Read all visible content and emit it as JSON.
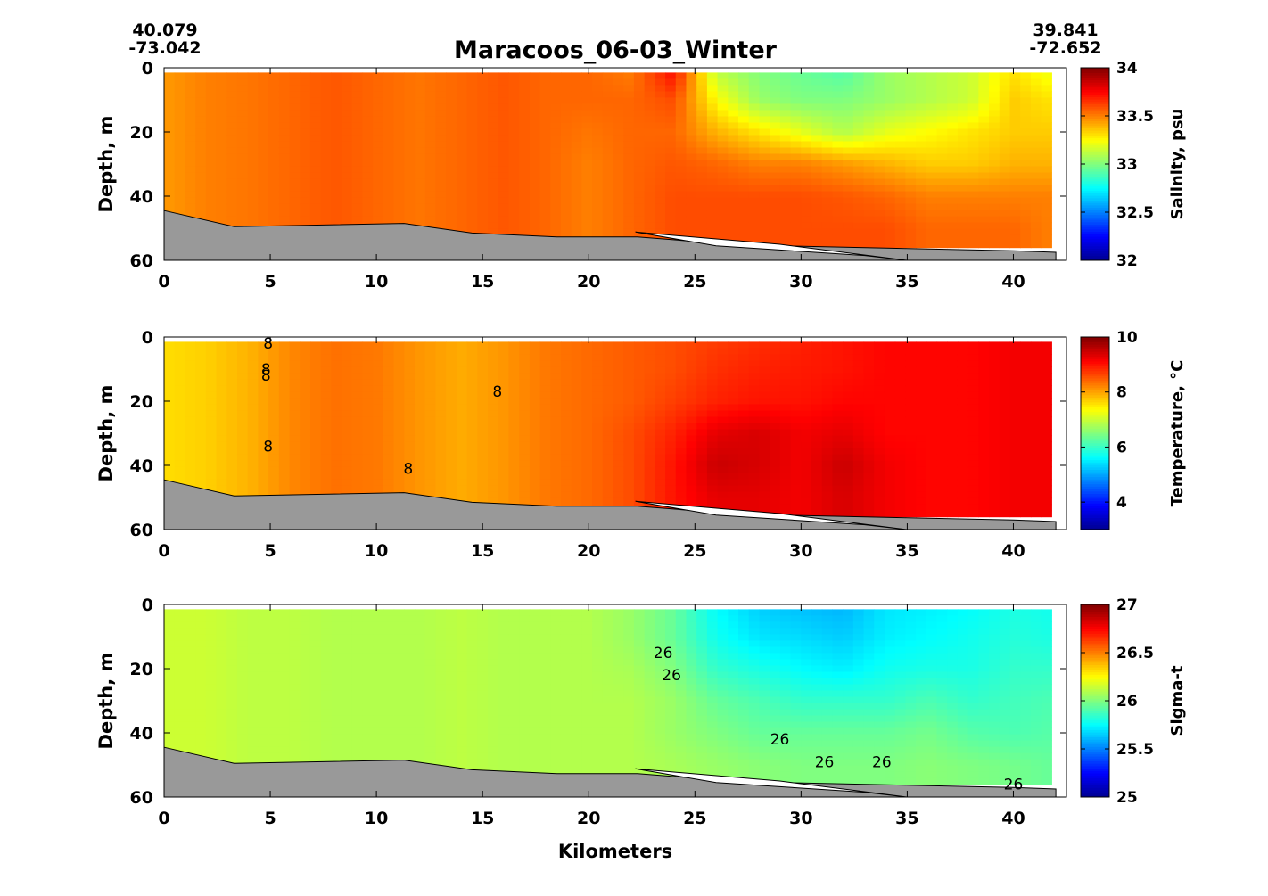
{
  "title": "Maracoos_06-03_Winter",
  "start_coord": {
    "lat": "40.079",
    "lon": "-73.042"
  },
  "end_coord": {
    "lat": "39.841",
    "lon": "-72.652"
  },
  "xlabel": "Kilometers",
  "colors": {
    "bottom_fill": "#999999",
    "jet": [
      "#00008f",
      "#0000ff",
      "#00ffff",
      "#ffff00",
      "#ff0000",
      "#800000"
    ]
  },
  "chart_data": [
    {
      "type": "heatmap",
      "variable": "salinity",
      "ylabel": "Depth, m",
      "colorbar_label": "Salinity, psu",
      "xlim": [
        0,
        42.5
      ],
      "ylim": [
        60,
        0
      ],
      "xticks": [
        0,
        5,
        10,
        15,
        20,
        25,
        30,
        35,
        40
      ],
      "yticks": [
        0,
        20,
        40,
        60
      ],
      "clim": [
        32,
        34
      ],
      "cticks": [
        32,
        32.5,
        33,
        33.5,
        34
      ],
      "data_max_depth": 56,
      "x_centers": [
        0,
        2,
        4,
        6,
        8,
        10,
        12,
        14,
        16,
        18,
        20,
        22,
        24,
        26,
        28,
        30,
        32,
        34,
        36,
        38,
        40,
        41.8
      ],
      "depth_centers": [
        0,
        10,
        20,
        30,
        40,
        50
      ],
      "values": [
        [
          33.45,
          33.5,
          33.52,
          33.55,
          33.58,
          33.55,
          33.52,
          33.55,
          33.58,
          33.55,
          33.55,
          33.5,
          33.75,
          33.1,
          33.0,
          32.95,
          32.9,
          33.05,
          33.1,
          33.15,
          33.3,
          33.2
        ],
        [
          33.45,
          33.5,
          33.52,
          33.55,
          33.58,
          33.55,
          33.52,
          33.55,
          33.58,
          33.55,
          33.55,
          33.55,
          33.6,
          33.25,
          33.05,
          33.0,
          33.0,
          33.05,
          33.1,
          33.15,
          33.35,
          33.3
        ],
        [
          33.45,
          33.5,
          33.52,
          33.55,
          33.58,
          33.55,
          33.52,
          33.55,
          33.58,
          33.55,
          33.52,
          33.55,
          33.55,
          33.4,
          33.3,
          33.2,
          33.1,
          33.2,
          33.25,
          33.3,
          33.35,
          33.35
        ],
        [
          33.45,
          33.5,
          33.52,
          33.55,
          33.58,
          33.55,
          33.52,
          33.55,
          33.58,
          33.55,
          33.5,
          33.55,
          33.58,
          33.55,
          33.5,
          33.5,
          33.45,
          33.4,
          33.35,
          33.35,
          33.4,
          33.4
        ],
        [
          33.45,
          33.5,
          33.52,
          33.55,
          33.58,
          33.55,
          33.52,
          33.55,
          33.58,
          33.55,
          33.5,
          33.55,
          33.6,
          33.6,
          33.6,
          33.6,
          33.58,
          33.55,
          33.5,
          33.5,
          33.5,
          33.5
        ],
        [
          33.45,
          33.5,
          33.52,
          33.55,
          33.58,
          33.55,
          33.52,
          33.55,
          33.58,
          33.55,
          33.5,
          33.55,
          33.6,
          33.6,
          33.6,
          33.6,
          33.6,
          33.6,
          33.55,
          33.55,
          33.55,
          33.5
        ]
      ],
      "contour_labels": []
    },
    {
      "type": "heatmap",
      "variable": "temperature",
      "ylabel": "Depth, m",
      "colorbar_label": "Temperature, °C",
      "xlim": [
        0,
        42.5
      ],
      "ylim": [
        60,
        0
      ],
      "xticks": [
        0,
        5,
        10,
        15,
        20,
        25,
        30,
        35,
        40
      ],
      "yticks": [
        0,
        20,
        40,
        60
      ],
      "clim": [
        3,
        10
      ],
      "cticks": [
        4,
        6,
        8,
        10
      ],
      "data_max_depth": 56,
      "x_centers": [
        0,
        2,
        4,
        6,
        8,
        10,
        12,
        14,
        16,
        18,
        20,
        22,
        24,
        26,
        28,
        30,
        32,
        34,
        36,
        38,
        40,
        41.8
      ],
      "depth_centers": [
        0,
        10,
        20,
        30,
        40,
        50
      ],
      "values": [
        [
          7.6,
          7.7,
          7.9,
          8.2,
          8.35,
          8.3,
          8.1,
          7.95,
          8.1,
          8.3,
          8.4,
          8.5,
          8.6,
          8.7,
          8.8,
          8.9,
          9.0,
          9.1,
          9.1,
          9.1,
          9.2,
          9.2
        ],
        [
          7.6,
          7.7,
          7.9,
          8.2,
          8.35,
          8.3,
          8.1,
          7.95,
          8.1,
          8.3,
          8.4,
          8.5,
          8.6,
          8.8,
          8.9,
          8.95,
          9.0,
          9.1,
          9.1,
          9.1,
          9.2,
          9.2
        ],
        [
          7.6,
          7.7,
          7.9,
          8.2,
          8.35,
          8.3,
          8.1,
          7.95,
          8.1,
          8.3,
          8.4,
          8.5,
          8.7,
          8.9,
          9.0,
          9.0,
          9.1,
          9.1,
          9.1,
          9.1,
          9.2,
          9.2
        ],
        [
          7.6,
          7.7,
          7.9,
          8.2,
          8.35,
          8.3,
          8.1,
          7.95,
          8.1,
          8.3,
          8.4,
          8.6,
          8.9,
          9.3,
          9.4,
          9.2,
          9.3,
          9.1,
          9.1,
          9.1,
          9.2,
          9.2
        ],
        [
          7.6,
          7.7,
          7.9,
          8.2,
          8.35,
          8.3,
          8.1,
          7.95,
          8.1,
          8.3,
          8.4,
          8.6,
          9.0,
          9.5,
          9.4,
          9.2,
          9.5,
          9.2,
          9.1,
          9.1,
          9.2,
          9.2
        ],
        [
          7.6,
          7.7,
          7.9,
          8.2,
          8.35,
          8.3,
          8.1,
          7.95,
          8.1,
          8.3,
          8.4,
          8.6,
          9.0,
          9.3,
          9.3,
          9.2,
          9.4,
          9.2,
          9.1,
          9.1,
          9.2,
          9.2
        ]
      ],
      "contour_labels": [
        {
          "text": "8",
          "x": 4.9,
          "depth": 2
        },
        {
          "text": "8",
          "x": 4.8,
          "depth": 10
        },
        {
          "text": "8",
          "x": 4.8,
          "depth": 12
        },
        {
          "text": "8",
          "x": 4.9,
          "depth": 34
        },
        {
          "text": "8",
          "x": 11.5,
          "depth": 41
        },
        {
          "text": "8",
          "x": 15.7,
          "depth": 17
        }
      ]
    },
    {
      "type": "heatmap",
      "variable": "sigma_t",
      "ylabel": "Depth, m",
      "colorbar_label": "Sigma-t",
      "xlim": [
        0,
        42.5
      ],
      "ylim": [
        60,
        0
      ],
      "xticks": [
        0,
        5,
        10,
        15,
        20,
        25,
        30,
        35,
        40
      ],
      "yticks": [
        0,
        20,
        40,
        60
      ],
      "clim": [
        25,
        27
      ],
      "cticks": [
        25,
        25.5,
        26,
        26.5,
        27
      ],
      "data_max_depth": 56,
      "x_centers": [
        0,
        2,
        4,
        6,
        8,
        10,
        12,
        14,
        16,
        18,
        20,
        22,
        24,
        26,
        28,
        30,
        32,
        34,
        36,
        38,
        40,
        41.8
      ],
      "depth_centers": [
        0,
        10,
        20,
        30,
        40,
        50
      ],
      "values": [
        [
          26.15,
          26.15,
          26.12,
          26.12,
          26.1,
          26.1,
          26.1,
          26.12,
          26.1,
          26.1,
          26.1,
          26.05,
          25.95,
          25.75,
          25.65,
          25.62,
          25.6,
          25.7,
          25.72,
          25.75,
          25.8,
          25.78
        ],
        [
          26.15,
          26.15,
          26.12,
          26.12,
          26.1,
          26.1,
          26.1,
          26.12,
          26.1,
          26.1,
          26.1,
          26.05,
          25.95,
          25.78,
          25.7,
          25.68,
          25.65,
          25.72,
          25.75,
          25.78,
          25.82,
          25.8
        ],
        [
          26.15,
          26.15,
          26.12,
          26.12,
          26.1,
          26.1,
          26.1,
          26.12,
          26.1,
          26.1,
          26.1,
          26.08,
          26.0,
          25.85,
          25.8,
          25.75,
          25.72,
          25.78,
          25.8,
          25.8,
          25.85,
          25.85
        ],
        [
          26.15,
          26.15,
          26.12,
          26.12,
          26.1,
          26.1,
          26.1,
          26.12,
          26.1,
          26.1,
          26.1,
          26.1,
          26.05,
          25.95,
          25.9,
          25.85,
          25.85,
          25.85,
          25.9,
          25.85,
          25.88,
          25.9
        ],
        [
          26.15,
          26.15,
          26.12,
          26.12,
          26.1,
          26.1,
          26.1,
          26.12,
          26.1,
          26.1,
          26.1,
          26.1,
          26.05,
          26.0,
          25.95,
          25.95,
          25.95,
          25.95,
          25.98,
          25.92,
          25.9,
          25.92
        ],
        [
          26.15,
          26.15,
          26.12,
          26.12,
          26.1,
          26.1,
          26.1,
          26.12,
          26.1,
          26.1,
          26.1,
          26.1,
          26.08,
          26.05,
          26.02,
          26.0,
          26.0,
          26.0,
          26.02,
          26.0,
          25.98,
          25.95
        ]
      ],
      "contour_labels": [
        {
          "text": "26",
          "x": 23.5,
          "depth": 15
        },
        {
          "text": "26",
          "x": 23.9,
          "depth": 22
        },
        {
          "text": "26",
          "x": 29.0,
          "depth": 42
        },
        {
          "text": "26",
          "x": 31.1,
          "depth": 49
        },
        {
          "text": "26",
          "x": 33.8,
          "depth": 49
        },
        {
          "text": "26",
          "x": 40.0,
          "depth": 56
        }
      ]
    }
  ]
}
